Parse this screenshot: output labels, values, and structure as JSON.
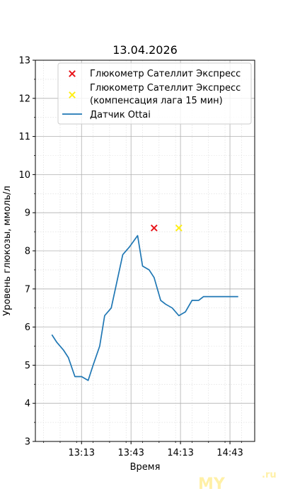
{
  "chart_data": {
    "type": "line",
    "title": "13.04.2026",
    "xlabel": "Время",
    "ylabel": "Уровень глюкозы, ммоль/л",
    "ylim": [
      3,
      13
    ],
    "yticks": [
      3,
      4,
      5,
      6,
      7,
      8,
      9,
      10,
      11,
      12,
      13
    ],
    "xticks": [
      "13:13",
      "13:43",
      "14:13",
      "14:43"
    ],
    "grid": true,
    "legend_position": "top-right",
    "series": [
      {
        "name": "Датчик Ottai",
        "kind": "line",
        "color": "#1f77b4",
        "x": [
          "12:55",
          "12:58",
          "13:02",
          "13:05",
          "13:09",
          "13:13",
          "13:17",
          "13:20",
          "13:24",
          "13:27",
          "13:31",
          "13:34",
          "13:38",
          "13:42",
          "13:47",
          "13:50",
          "13:54",
          "13:57",
          "14:01",
          "14:04",
          "14:08",
          "14:12",
          "14:16",
          "14:20",
          "14:24",
          "14:27",
          "14:31",
          "14:34",
          "14:38",
          "14:41",
          "14:45",
          "14:48"
        ],
        "values": [
          5.8,
          5.6,
          5.4,
          5.2,
          4.7,
          4.7,
          4.6,
          5.0,
          5.5,
          6.3,
          6.5,
          7.1,
          7.9,
          8.1,
          8.4,
          7.6,
          7.5,
          7.3,
          6.7,
          6.6,
          6.5,
          6.3,
          6.4,
          6.7,
          6.7,
          6.8,
          6.8,
          6.8,
          6.8,
          6.8,
          6.8,
          6.8
        ]
      },
      {
        "name": "Глюкометр Сателлит Экспресс",
        "kind": "scatter",
        "marker": "x",
        "color": "#e8141a",
        "x": [
          "13:57"
        ],
        "values": [
          8.6
        ]
      },
      {
        "name": "Глюкометр Сателлит Экспресс\n(компенсация лага 15 мин)",
        "kind": "scatter",
        "marker": "x",
        "color": "#ffef14",
        "x": [
          "14:12"
        ],
        "values": [
          8.6
        ]
      }
    ]
  },
  "legend": {
    "entries": [
      {
        "line1": "Глюкометр Сателлит Экспресс",
        "line2": ""
      },
      {
        "line1": "Глюкометр Сателлит Экспресс",
        "line2": "(компенсация лага 15 мин)"
      },
      {
        "line1": "Датчик Ottai",
        "line2": ""
      }
    ]
  },
  "watermark": {
    "text": "MY",
    "suffix": ".ru"
  }
}
